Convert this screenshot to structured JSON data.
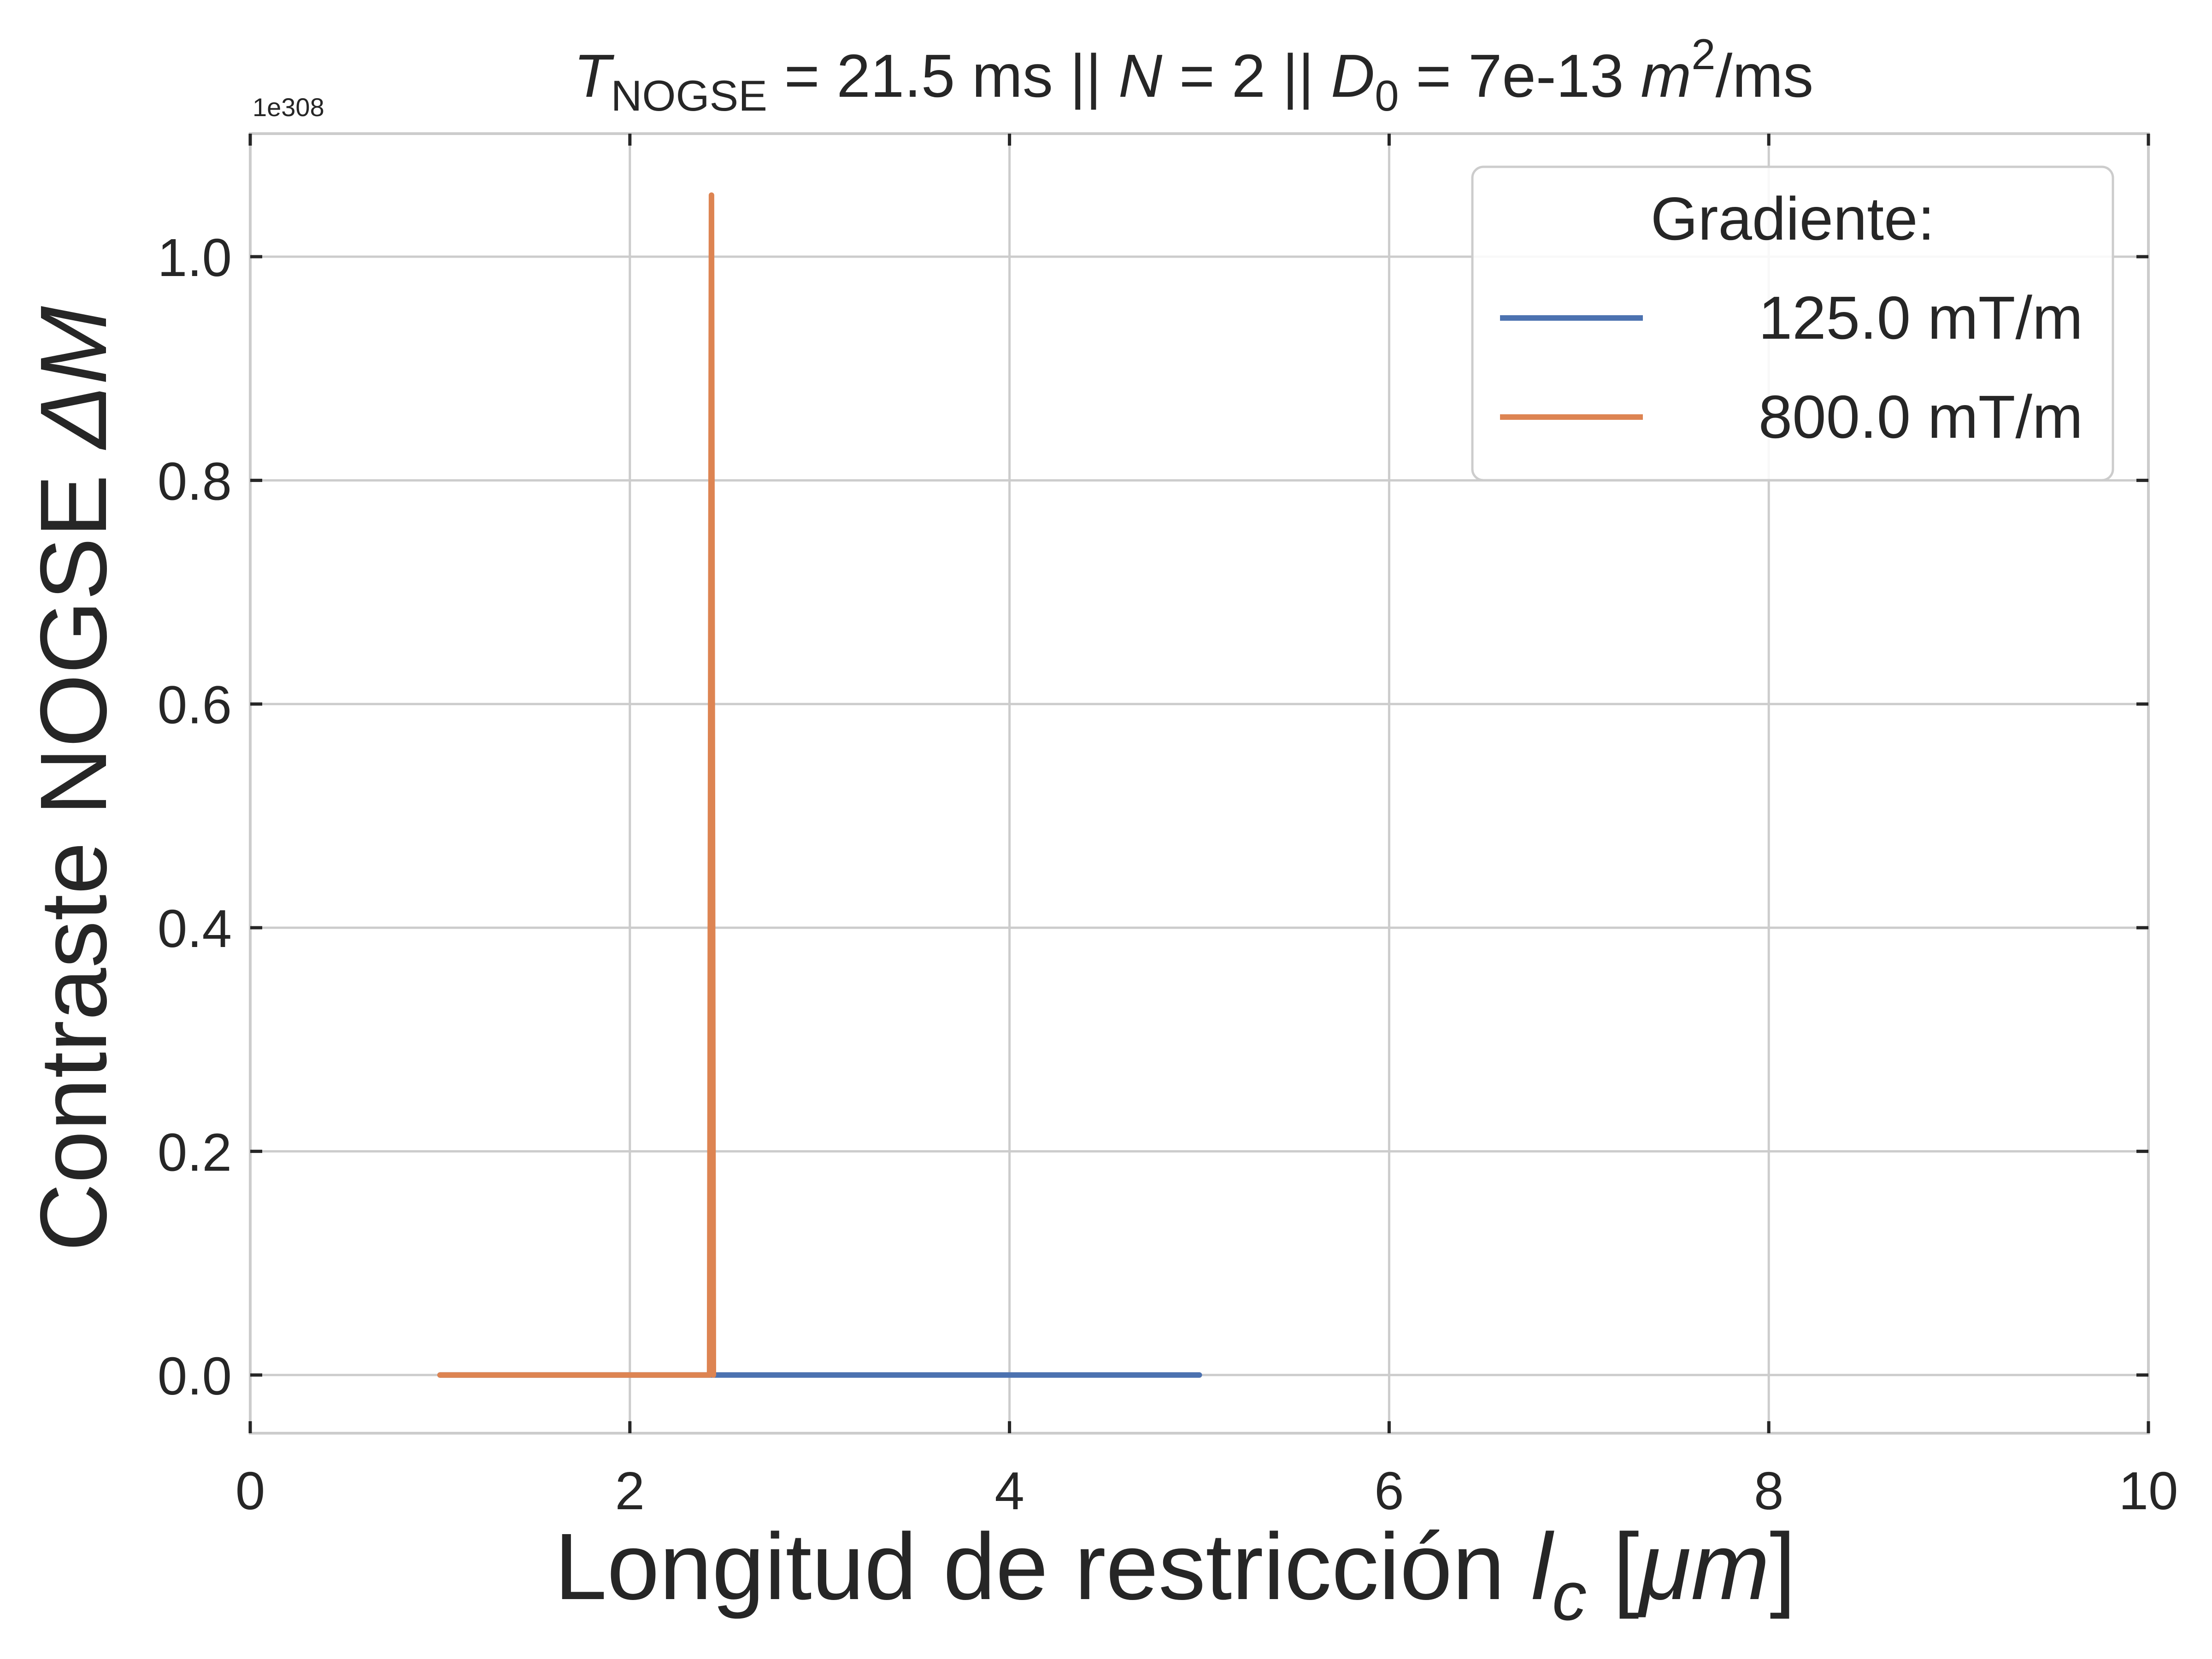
{
  "chart_data": {
    "type": "line",
    "title": {
      "prefix": "T",
      "prefix_sub": "NOGSE",
      "part1": " = 21.5 ms || ",
      "n_symbol": "N",
      "part2": " = 2 || ",
      "d_symbol": "D",
      "d_sub": "0",
      "part3": " = 7e-13 ",
      "m_symbol": "m",
      "m_sup": "2",
      "part4": "/ms"
    },
    "xlabel": {
      "text": "Longitud de restricción ",
      "symbol": "l",
      "symbol_sub": "c",
      "unit_open": " [",
      "unit": "μm",
      "unit_close": "]"
    },
    "ylabel": {
      "text": "Contraste NOGSE ",
      "symbol": "ΔM"
    },
    "y_offset_text": "1e308",
    "y_scale_exponent": 308,
    "xlim": [
      0,
      10
    ],
    "ylim": [
      -0.052,
      1.11
    ],
    "x_ticks": [
      0,
      2,
      4,
      6,
      8,
      10
    ],
    "x_tick_labels": [
      "0",
      "2",
      "4",
      "6",
      "8",
      "10"
    ],
    "y_ticks": [
      0.0,
      0.2,
      0.4,
      0.6,
      0.8,
      1.0
    ],
    "y_tick_labels": [
      "0.0",
      "0.2",
      "0.4",
      "0.6",
      "0.8",
      "1.0"
    ],
    "grid": true,
    "legend": {
      "title": "Gradiente:",
      "placement": "top-right",
      "entries": [
        "125.0 mT/m",
        "800.0 mT/m"
      ]
    },
    "series": [
      {
        "name": "125.0 mT/m",
        "color": "#4c72b0",
        "x": [
          1.0,
          2.44,
          5.0
        ],
        "y": [
          0.0,
          0.0,
          0.0
        ]
      },
      {
        "name": "800.0 mT/m",
        "color": "#dd8452",
        "x": [
          1.0,
          2.42,
          2.43,
          2.44
        ],
        "y": [
          0.0,
          0.0,
          1.055,
          0.0
        ]
      }
    ]
  }
}
